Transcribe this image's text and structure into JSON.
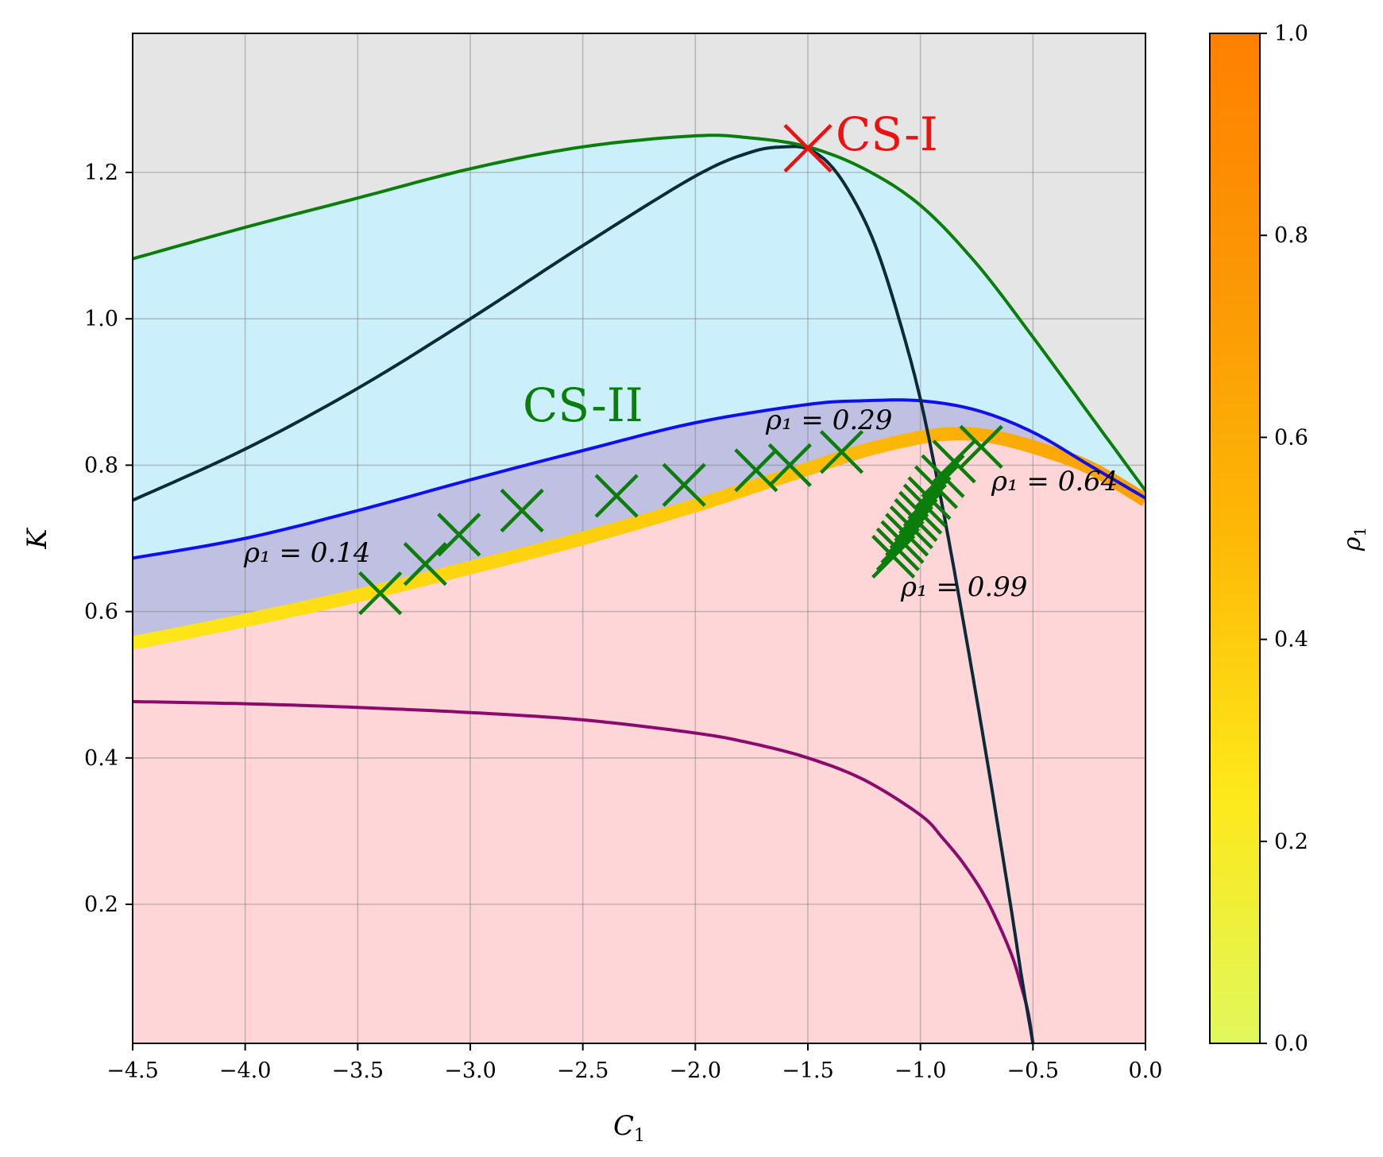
{
  "chart_data": {
    "type": "line",
    "title": "",
    "xlabel": "C",
    "xlabel_sub": "1",
    "ylabel": "K",
    "xlim": [
      -4.5,
      0.0
    ],
    "ylim": [
      0.01,
      1.39
    ],
    "grid": true,
    "x_ticks": [
      -4.5,
      -4.0,
      -3.5,
      -3.0,
      -2.5,
      -2.0,
      -1.5,
      -1.0,
      -0.5,
      0.0
    ],
    "x_tick_labels": [
      "−4.5",
      "−4.0",
      "−3.5",
      "−3.0",
      "−2.5",
      "−2.0",
      "−1.5",
      "−1.0",
      "−0.5",
      "0.0"
    ],
    "y_ticks": [
      0.2,
      0.4,
      0.6,
      0.8,
      1.0,
      1.2
    ],
    "y_tick_labels": [
      "0.2",
      "0.4",
      "0.6",
      "0.8",
      "1.0",
      "1.2"
    ],
    "colors": {
      "background_region": "#e5e5e5",
      "cyan_region": "#cbf0fb",
      "blue_region": "#bfc0e2",
      "pink_region": "#fed6d8",
      "green_curve": "#0a7d0a",
      "dark_curve": "#0b2a3a",
      "blue_curve": "#1010ee",
      "purple_curve": "#8b0a6e",
      "markers": "#0a7d0a",
      "cs1_marker": "#ee1111"
    },
    "series": [
      {
        "role": "green-boundary",
        "x": [
          -4.5,
          -4.0,
          -3.5,
          -3.0,
          -2.5,
          -2.0,
          -1.75,
          -1.5,
          -1.25,
          -1.0,
          -0.75,
          -0.5,
          -0.25,
          0.0
        ],
        "y": [
          1.082,
          1.125,
          1.165,
          1.205,
          1.235,
          1.25,
          1.247,
          1.235,
          1.205,
          1.155,
          1.075,
          0.975,
          0.87,
          0.765
        ]
      },
      {
        "role": "dark-curve",
        "x": [
          -4.5,
          -4.0,
          -3.5,
          -3.0,
          -2.5,
          -2.0,
          -1.75,
          -1.6,
          -1.5,
          -1.4,
          -1.3,
          -1.2,
          -1.1,
          -1.0,
          -0.9,
          -0.8,
          -0.7,
          -0.6,
          -0.55,
          -0.5
        ],
        "y": [
          0.752,
          0.822,
          0.905,
          1.0,
          1.1,
          1.195,
          1.228,
          1.235,
          1.232,
          1.21,
          1.165,
          1.1,
          1.005,
          0.89,
          0.74,
          0.57,
          0.39,
          0.2,
          0.1,
          0.01
        ]
      },
      {
        "role": "blue-boundary",
        "x": [
          -4.5,
          -4.0,
          -3.5,
          -3.0,
          -2.5,
          -2.0,
          -1.5,
          -1.25,
          -1.0,
          -0.75,
          -0.5,
          -0.25,
          0.0
        ],
        "y": [
          0.673,
          0.7,
          0.738,
          0.78,
          0.82,
          0.858,
          0.883,
          0.888,
          0.888,
          0.875,
          0.845,
          0.8,
          0.755
        ]
      },
      {
        "role": "rho1-thick-curve",
        "x": [
          -4.5,
          -4.0,
          -3.5,
          -3.0,
          -2.5,
          -2.0,
          -1.75,
          -1.5,
          -1.25,
          -1.0,
          -0.85,
          -0.7,
          -0.5,
          -0.25,
          0.0
        ],
        "y": [
          0.557,
          0.588,
          0.622,
          0.66,
          0.7,
          0.745,
          0.77,
          0.795,
          0.82,
          0.838,
          0.843,
          0.84,
          0.825,
          0.797,
          0.752
        ]
      },
      {
        "role": "purple-curve",
        "x": [
          -4.5,
          -4.0,
          -3.5,
          -3.0,
          -2.5,
          -2.0,
          -1.75,
          -1.5,
          -1.25,
          -1.0,
          -0.9,
          -0.8,
          -0.7,
          -0.6,
          -0.55,
          -0.52,
          -0.5
        ],
        "y": [
          0.477,
          0.474,
          0.469,
          0.462,
          0.452,
          0.434,
          0.42,
          0.4,
          0.37,
          0.322,
          0.29,
          0.252,
          0.203,
          0.135,
          0.086,
          0.05,
          0.01
        ]
      }
    ],
    "markers": {
      "x": [
        -3.4,
        -3.2,
        -3.05,
        -2.77,
        -2.35,
        -2.05,
        -1.73,
        -1.58,
        -1.35,
        -1.12,
        -1.1,
        -1.08,
        -1.06,
        -1.04,
        -1.02,
        -1.0,
        -0.98,
        -0.96,
        -0.93,
        -0.9,
        -0.85,
        -0.73
      ],
      "y": [
        0.625,
        0.665,
        0.705,
        0.738,
        0.758,
        0.773,
        0.793,
        0.8,
        0.818,
        0.675,
        0.685,
        0.695,
        0.705,
        0.715,
        0.725,
        0.735,
        0.745,
        0.755,
        0.77,
        0.785,
        0.805,
        0.825
      ]
    },
    "cs1_point": {
      "x": -1.5,
      "y": 1.233
    },
    "labels": {
      "cs1": "CS-I",
      "cs2": "CS-II",
      "rho_014": "ρ₁ = 0.14",
      "rho_029": "ρ₁ = 0.29",
      "rho_064": "ρ₁ = 0.64",
      "rho_099": "ρ₁ = 0.99"
    },
    "colorbar": {
      "label": "ρ",
      "label_sub": "1",
      "range": [
        0.0,
        1.0
      ],
      "ticks": [
        0.0,
        0.2,
        0.4,
        0.6,
        0.8,
        1.0
      ],
      "tick_labels": [
        "0.0",
        "0.2",
        "0.4",
        "0.6",
        "0.8",
        "1.0"
      ],
      "colors": [
        "#e0f85c",
        "#fde81a",
        "#fdb906",
        "#fb9805",
        "#ff8000"
      ]
    }
  }
}
